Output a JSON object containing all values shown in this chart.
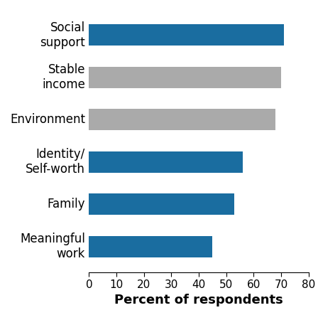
{
  "categories": [
    "Meaningful\nwork",
    "Family",
    "Identity/\nSelf-worth",
    "Environment",
    "Stable\nincome",
    "Social\nsupport"
  ],
  "values": [
    45,
    53,
    56,
    68,
    70,
    71
  ],
  "colors": [
    "#1a6da0",
    "#1a6da0",
    "#1a6da0",
    "#aaaaaa",
    "#aaaaaa",
    "#1a6da0"
  ],
  "xlabel": "Percent of respondents",
  "xlim": [
    0,
    80
  ],
  "xticks": [
    0,
    10,
    20,
    30,
    40,
    50,
    60,
    70,
    80
  ],
  "background_color": "#ffffff",
  "bar_height": 0.5,
  "xlabel_fontsize": 13,
  "xlabel_fontweight": "bold",
  "tick_fontsize": 11,
  "label_fontsize": 12
}
